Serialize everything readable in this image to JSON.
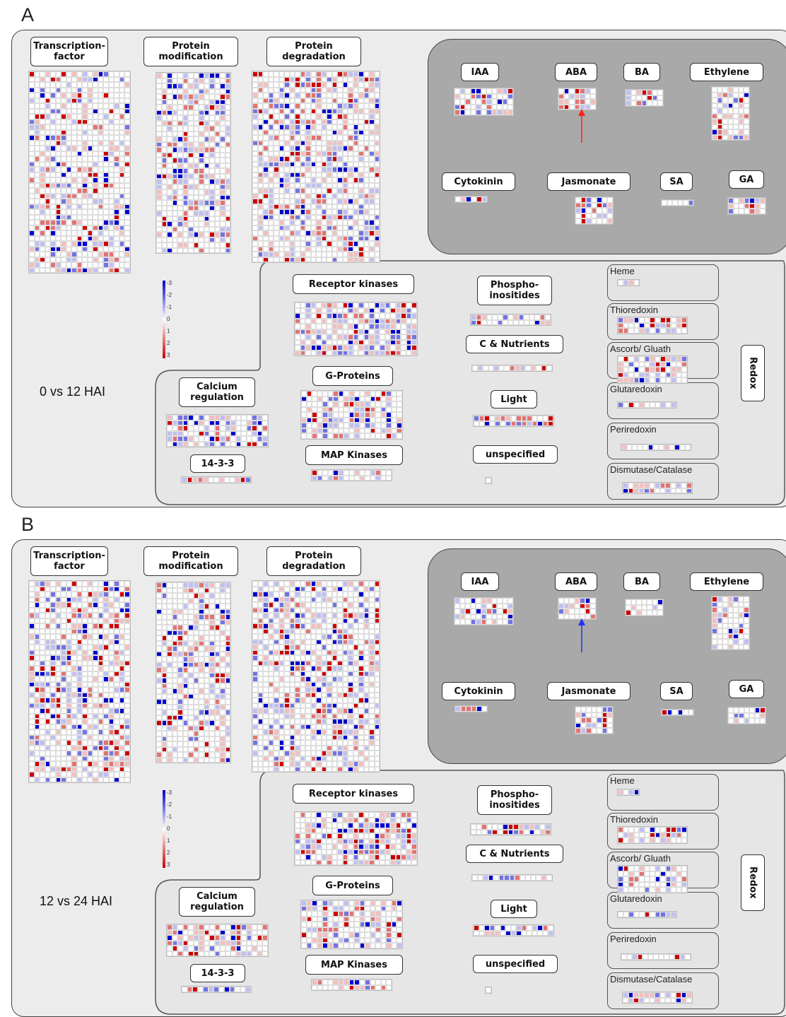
{
  "panels": [
    {
      "letter": "A",
      "comparison": "0 vs 12 HAI",
      "arrow_color": "#ff2020",
      "color_seed": 7
    },
    {
      "letter": "B",
      "comparison": "12 vs 24 HAI",
      "arrow_color": "#2030ff",
      "color_seed": 91
    }
  ],
  "labels": {
    "transcription_factor": "Transcription-\nfactor",
    "protein_modification": "Protein\nmodification",
    "protein_degradation": "Protein\ndegradation",
    "iaa": "IAA",
    "aba": "ABA",
    "ba": "BA",
    "ethylene": "Ethylene",
    "cytokinin": "Cytokinin",
    "jasmonate": "Jasmonate",
    "sa": "SA",
    "ga": "GA",
    "receptor_kinases": "Receptor kinases",
    "phosphoinositides": "Phospho-\ninositides",
    "c_nutrients": "C & Nutrients",
    "g_proteins": "G-Proteins",
    "light": "Light",
    "calcium_regulation": "Calcium\nregulation",
    "map_kinases": "MAP Kinases",
    "unspecified": "unspecified",
    "fourteen_three_three": "14-3-3",
    "redox": "Redox",
    "heme": "Heme",
    "thioredoxin": "Thioredoxin",
    "ascorb_gluath": "Ascorb/ Gluath",
    "glutaredoxin": "Glutaredoxin",
    "periredoxin": "Periredoxin",
    "dismutase_catalase": "Dismutase/Catalase"
  },
  "legend": {
    "ticks": [
      "-3",
      "-2",
      "-1",
      "0",
      "1",
      "2",
      "3"
    ],
    "colors": {
      "down": "#0000cc",
      "neutral": "#ffffff",
      "up": "#cc0000"
    }
  }
}
